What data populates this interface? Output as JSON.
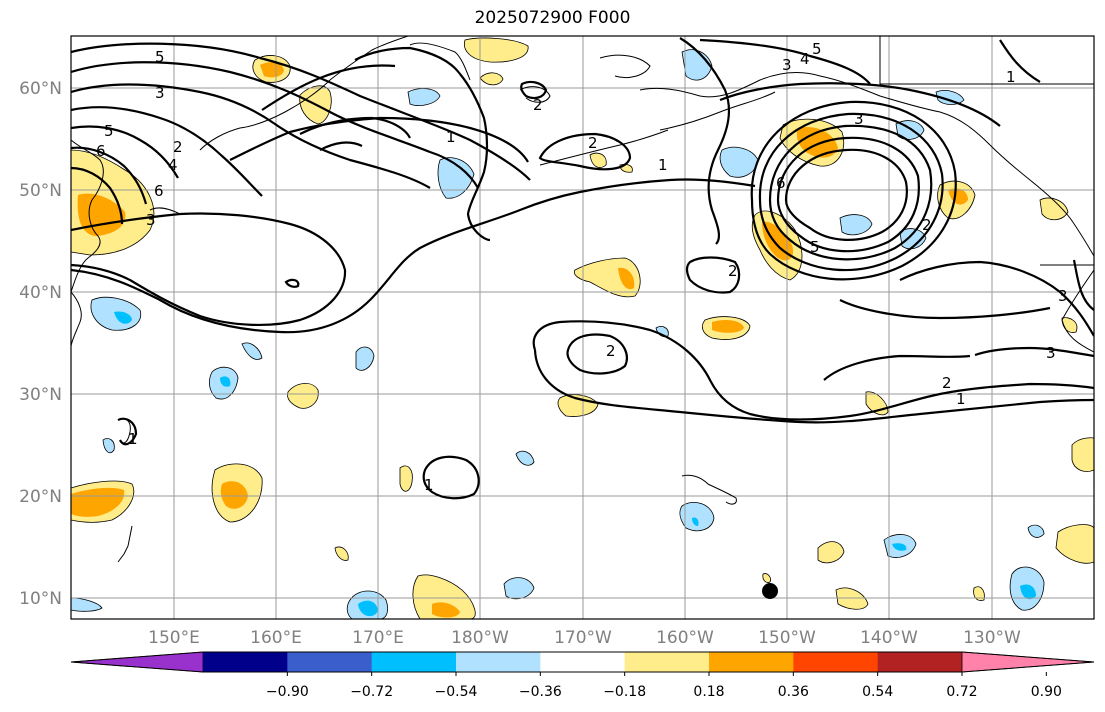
{
  "title": "2025072900 F000",
  "lat_labels": [
    "10°N",
    "20°N",
    "30°N",
    "40°N",
    "50°N",
    "60°N"
  ],
  "lon_labels": [
    "150°E",
    "160°E",
    "170°E",
    "180°W",
    "170°W",
    "160°W",
    "150°W",
    "140°W",
    "130°W"
  ],
  "contour_labels": [
    "5",
    "3",
    "2",
    "4",
    "6",
    "1",
    "2",
    "3",
    "5",
    "6",
    "1",
    "4",
    "5",
    "3",
    "6",
    "1",
    "2",
    "2",
    "3",
    "3",
    "1",
    "2",
    "3",
    "1",
    "2",
    "1",
    "2",
    "5"
  ],
  "colorbar": {
    "ticks": [
      "−0.90",
      "−0.72",
      "−0.54",
      "−0.36",
      "−0.18",
      "0.18",
      "0.36",
      "0.54",
      "0.72",
      "0.90"
    ],
    "colors": [
      "#9932cc",
      "#00008b",
      "#3a5fcd",
      "#00bfff",
      "#b0e2ff",
      "#ffffff",
      "#ffec8b",
      "#ffa500",
      "#ff4500",
      "#b22222",
      "#ff82ab"
    ]
  },
  "colors": {
    "positive_weak": "#ffec8b",
    "positive_mid": "#ffa500",
    "negative_weak": "#b0e2ff",
    "negative_mid": "#00bfff",
    "grid": "#9a9a9a",
    "axis_label": "#808080"
  }
}
